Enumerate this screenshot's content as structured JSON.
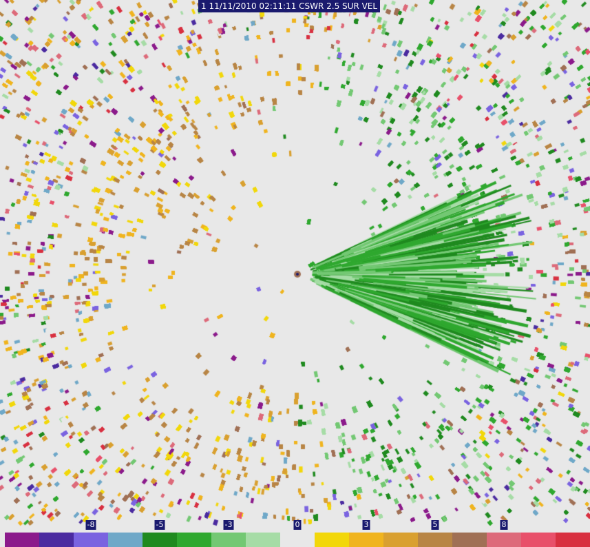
{
  "header": {
    "title": "1 11/11/2010 02:11:11 CSWR 2.5 SUR VEL"
  },
  "legend": {
    "colors": [
      "#8b1a8b",
      "#4b2ba0",
      "#7a63e0",
      "#6fa8c8",
      "#1f8a1f",
      "#2fa82f",
      "#73c873",
      "#a6dca6",
      "#e8e8e8",
      "#f2d70a",
      "#f0b41e",
      "#d9a030",
      "#b88545",
      "#a07055",
      "#dd6a7a",
      "#e8506a",
      "#d83040"
    ],
    "ticks": [
      {
        "label": "-8",
        "index": 2.5
      },
      {
        "label": "-5",
        "index": 4.5
      },
      {
        "label": "-3",
        "index": 6.5
      },
      {
        "label": "0",
        "index": 8.5
      },
      {
        "label": "3",
        "index": 10.5
      },
      {
        "label": "5",
        "index": 12.5
      },
      {
        "label": "8",
        "index": 14.5
      }
    ]
  },
  "radar": {
    "background": "#e8e8e8",
    "sectors": [
      {
        "name": "receding-east",
        "palette": [
          "#1f8a1f",
          "#2fa82f",
          "#73c873",
          "#a6dca6"
        ]
      },
      {
        "name": "approaching-west",
        "palette": [
          "#f2d70a",
          "#f0b41e",
          "#d9a030",
          "#b88545"
        ]
      },
      {
        "name": "noise",
        "palette": [
          "#7a63e0",
          "#6fa8c8",
          "#dd6a7a",
          "#a07055",
          "#8b1a8b"
        ]
      }
    ]
  }
}
